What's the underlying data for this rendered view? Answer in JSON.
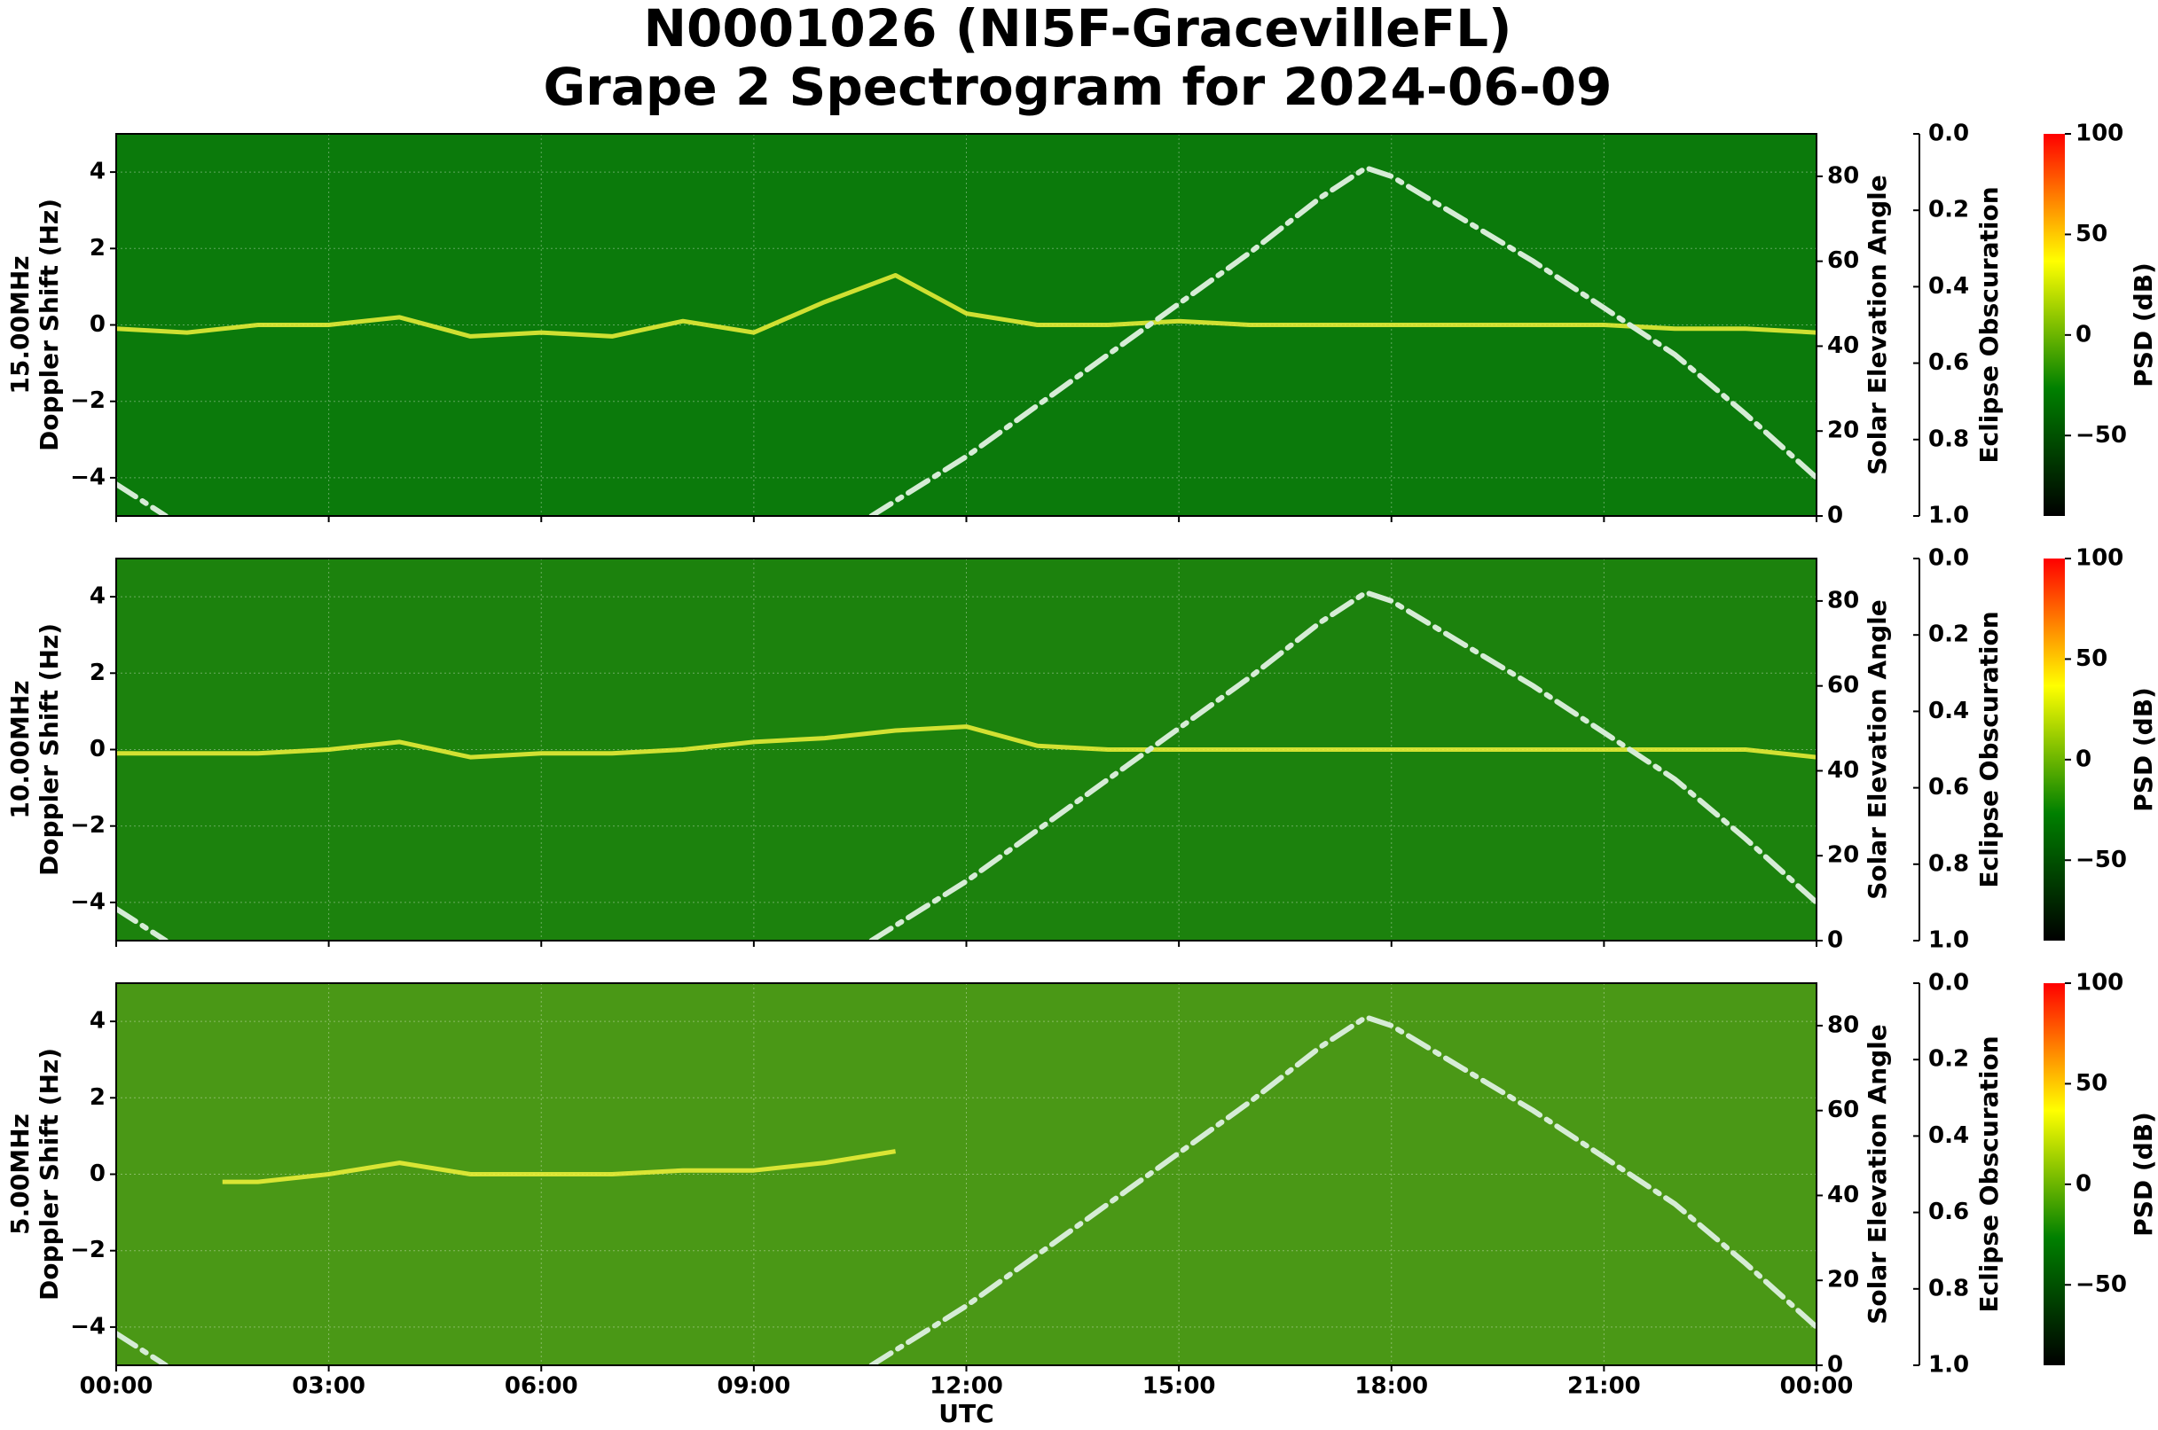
{
  "title": [
    "N0001026 (NI5F-GracevilleFL)",
    "Grape 2 Spectrogram for 2024-06-09"
  ],
  "x_axis": {
    "label": "UTC",
    "xlim": [
      0,
      24
    ],
    "xticks": [
      {
        "value": 0,
        "label": "00:00"
      },
      {
        "value": 3,
        "label": "03:00"
      },
      {
        "value": 6,
        "label": "06:00"
      },
      {
        "value": 9,
        "label": "09:00"
      },
      {
        "value": 12,
        "label": "12:00"
      },
      {
        "value": 15,
        "label": "15:00"
      },
      {
        "value": 18,
        "label": "18:00"
      },
      {
        "value": 21,
        "label": "21:00"
      },
      {
        "value": 24,
        "label": "00:00"
      }
    ]
  },
  "chart_data": [
    {
      "type": "spectrogram",
      "ylabel": [
        "15.00MHz",
        "Doppler Shift (Hz)"
      ],
      "background": "#0b7a0b",
      "grid": true,
      "ylim": [
        -5,
        5
      ],
      "yticks": [
        {
          "value": -4,
          "label": "−4"
        },
        {
          "value": -2,
          "label": "−2"
        },
        0,
        2,
        4
      ],
      "y2label": "Solar Elevation Angle",
      "y2lim": [
        0,
        90
      ],
      "y2ticks": [
        0,
        20,
        40,
        60,
        80
      ],
      "eclipse_label": "Eclipse Obscuration",
      "eclipse_lim": [
        0,
        1
      ],
      "eclipse_inverted": true,
      "eclipse_ticks": [
        {
          "value": 0,
          "label": "0.0"
        },
        {
          "value": 0.2,
          "label": "0.2"
        },
        {
          "value": 0.4,
          "label": "0.4"
        },
        {
          "value": 0.6,
          "label": "0.6"
        },
        {
          "value": 0.8,
          "label": "0.8"
        },
        {
          "value": 1,
          "label": "1.0"
        }
      ],
      "colorbar_label": "PSD (dB)",
      "clim": [
        -90,
        100
      ],
      "cticks": [
        {
          "value": -50,
          "label": "−50"
        },
        0,
        50,
        100
      ],
      "colormap": [
        "#000000",
        "#008000",
        "#ffff00",
        "#ff0000"
      ],
      "series": [
        {
          "color": "#f2f23a",
          "x": [
            0,
            1,
            2,
            3,
            4,
            5,
            6,
            7,
            8,
            9,
            10,
            11,
            12,
            13,
            14,
            15,
            16,
            17,
            18,
            19,
            20,
            21,
            22,
            23,
            24
          ],
          "values": [
            -0.1,
            -0.2,
            0,
            0,
            0.2,
            -0.3,
            -0.2,
            -0.3,
            0.1,
            -0.2,
            0.6,
            1.3,
            0.3,
            0,
            0,
            0.1,
            0,
            0,
            0,
            0,
            0,
            0,
            -0.1,
            -0.1,
            -0.2
          ]
        },
        {
          "color": "#d6ecd6",
          "axis": "y2",
          "x": [
            0,
            0.7,
            6,
            10.66,
            12,
            13,
            14,
            15,
            16,
            17,
            17.64,
            18,
            19,
            20,
            21,
            22,
            23,
            24
          ],
          "values": [
            7.5,
            0,
            null,
            0,
            14,
            26,
            38,
            50,
            62,
            75,
            82,
            80,
            70,
            60,
            49,
            38,
            24,
            9
          ]
        }
      ]
    },
    {
      "type": "spectrogram",
      "ylabel": [
        "10.00MHz",
        "Doppler Shift (Hz)"
      ],
      "background": "#1c820d",
      "grid": true,
      "ylim": [
        -5,
        5
      ],
      "yticks": [
        {
          "value": -4,
          "label": "−4"
        },
        {
          "value": -2,
          "label": "−2"
        },
        0,
        2,
        4
      ],
      "y2label": "Solar Elevation Angle",
      "y2lim": [
        0,
        90
      ],
      "y2ticks": [
        0,
        20,
        40,
        60,
        80
      ],
      "eclipse_label": "Eclipse Obscuration",
      "eclipse_lim": [
        0,
        1
      ],
      "eclipse_inverted": true,
      "eclipse_ticks": [
        {
          "value": 0,
          "label": "0.0"
        },
        {
          "value": 0.2,
          "label": "0.2"
        },
        {
          "value": 0.4,
          "label": "0.4"
        },
        {
          "value": 0.6,
          "label": "0.6"
        },
        {
          "value": 0.8,
          "label": "0.8"
        },
        {
          "value": 1,
          "label": "1.0"
        }
      ],
      "colorbar_label": "PSD (dB)",
      "clim": [
        -90,
        100
      ],
      "cticks": [
        {
          "value": -50,
          "label": "−50"
        },
        0,
        50,
        100
      ],
      "colormap": [
        "#000000",
        "#008000",
        "#ffff00",
        "#ff0000"
      ],
      "series": [
        {
          "color": "#f2f23a",
          "x": [
            0,
            1,
            2,
            3,
            4,
            5,
            6,
            7,
            8,
            9,
            10,
            11,
            12,
            13,
            14,
            15,
            16,
            17,
            18,
            19,
            20,
            21,
            22,
            23,
            24
          ],
          "values": [
            -0.1,
            -0.1,
            -0.1,
            0,
            0.2,
            -0.2,
            -0.1,
            -0.1,
            0,
            0.2,
            0.3,
            0.5,
            0.6,
            0.1,
            0,
            0,
            0,
            0,
            0,
            0,
            0,
            0,
            0,
            0,
            -0.2
          ]
        },
        {
          "color": "#d6ecd6",
          "axis": "y2",
          "x": [
            0,
            0.7,
            6,
            10.66,
            12,
            13,
            14,
            15,
            16,
            17,
            17.64,
            18,
            19,
            20,
            21,
            22,
            23,
            24
          ],
          "values": [
            7.5,
            0,
            null,
            0,
            14,
            26,
            38,
            50,
            62,
            75,
            82,
            80,
            70,
            60,
            49,
            38,
            24,
            9
          ]
        }
      ]
    },
    {
      "type": "spectrogram",
      "ylabel": [
        "5.00MHz",
        "Doppler Shift (Hz)"
      ],
      "background": "#4a9816",
      "grid": true,
      "ylim": [
        -5,
        5
      ],
      "yticks": [
        {
          "value": -4,
          "label": "−4"
        },
        {
          "value": -2,
          "label": "−2"
        },
        0,
        2,
        4
      ],
      "y2label": "Solar Elevation Angle",
      "y2lim": [
        0,
        90
      ],
      "y2ticks": [
        0,
        20,
        40,
        60,
        80
      ],
      "eclipse_label": "Eclipse Obscuration",
      "eclipse_lim": [
        0,
        1
      ],
      "eclipse_inverted": true,
      "eclipse_ticks": [
        {
          "value": 0,
          "label": "0.0"
        },
        {
          "value": 0.2,
          "label": "0.2"
        },
        {
          "value": 0.4,
          "label": "0.4"
        },
        {
          "value": 0.6,
          "label": "0.6"
        },
        {
          "value": 0.8,
          "label": "0.8"
        },
        {
          "value": 1,
          "label": "1.0"
        }
      ],
      "colorbar_label": "PSD (dB)",
      "clim": [
        -90,
        100
      ],
      "cticks": [
        {
          "value": -50,
          "label": "−50"
        },
        0,
        50,
        100
      ],
      "colormap": [
        "#000000",
        "#008000",
        "#ffff00",
        "#ff0000"
      ],
      "series": [
        {
          "color": "#f2f23a",
          "x": [
            1.5,
            2,
            3,
            4,
            5,
            6,
            7,
            8,
            9,
            10,
            11
          ],
          "values": [
            -0.2,
            -0.2,
            0,
            0.3,
            0,
            0,
            0,
            0.1,
            0.1,
            0.3,
            0.6
          ]
        },
        {
          "color": "#d6ecd6",
          "axis": "y2",
          "x": [
            0,
            0.7,
            6,
            10.66,
            12,
            13,
            14,
            15,
            16,
            17,
            17.64,
            18,
            19,
            20,
            21,
            22,
            23,
            24
          ],
          "values": [
            7.5,
            0,
            null,
            0,
            14,
            26,
            38,
            50,
            62,
            75,
            82,
            80,
            70,
            60,
            49,
            38,
            24,
            9
          ]
        }
      ]
    }
  ]
}
